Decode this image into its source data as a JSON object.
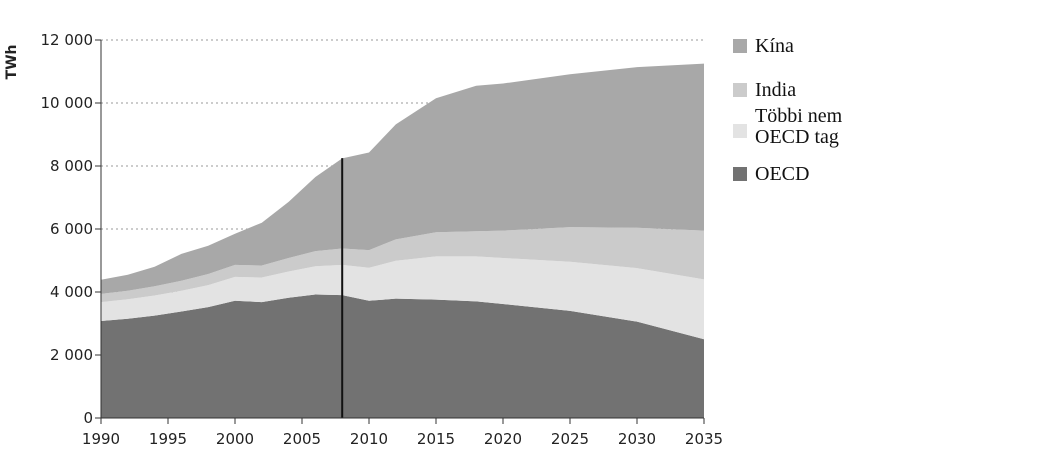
{
  "chart_data": {
    "type": "area",
    "stacked": true,
    "ylabel": "TWh",
    "xlim": [
      1990,
      2035
    ],
    "ylim": [
      0,
      12000
    ],
    "x_ticks": [
      "1990",
      "1995",
      "2000",
      "2005",
      "2010",
      "2015",
      "2020",
      "2025",
      "2030",
      "2035"
    ],
    "y_ticks": [
      "0",
      "2 000",
      "4 000",
      "6 000",
      "8 000",
      "10 000",
      "12 000"
    ],
    "grid": "horizontal dotted",
    "marker_line_x": 2008,
    "legend_position": "right",
    "x": [
      1990,
      1992,
      1994,
      1996,
      1998,
      2000,
      2002,
      2004,
      2006,
      2008,
      2010,
      2012,
      2015,
      2018,
      2020,
      2025,
      2030,
      2035
    ],
    "series": [
      {
        "name": "OECD",
        "color": "#727272",
        "values": [
          3080,
          3150,
          3250,
          3380,
          3520,
          3720,
          3680,
          3820,
          3920,
          3900,
          3720,
          3790,
          3760,
          3700,
          3620,
          3400,
          3060,
          2500
        ]
      },
      {
        "name": "Többi nem OECD tag",
        "color": "#e3e3e3",
        "values": [
          600,
          620,
          640,
          660,
          700,
          760,
          780,
          830,
          900,
          960,
          1050,
          1200,
          1370,
          1430,
          1460,
          1560,
          1700,
          1900
        ]
      },
      {
        "name": "India",
        "color": "#cbcbcb",
        "values": [
          260,
          270,
          290,
          320,
          350,
          380,
          380,
          430,
          480,
          520,
          560,
          680,
          770,
          800,
          870,
          1100,
          1280,
          1550
        ]
      },
      {
        "name": "Kína",
        "color": "#a8a8a8",
        "values": [
          450,
          510,
          620,
          850,
          900,
          990,
          1360,
          1780,
          2350,
          2860,
          3100,
          3650,
          4250,
          4620,
          4670,
          4850,
          5100,
          5300
        ]
      }
    ]
  }
}
